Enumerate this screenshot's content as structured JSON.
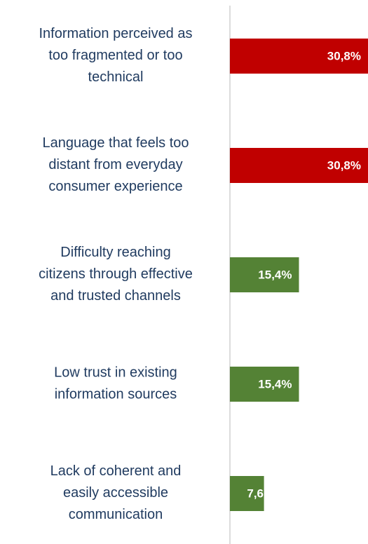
{
  "chart_data": {
    "type": "bar",
    "orientation": "horizontal",
    "categories": [
      [
        "Information perceived as",
        "too fragmented or too",
        "technical"
      ],
      [
        "Language that feels too",
        "distant from everyday",
        "consumer experience"
      ],
      [
        "Difficulty reaching",
        "citizens through effective",
        "and trusted channels"
      ],
      [
        "Low trust in existing",
        "information sources"
      ],
      [
        "Lack of coherent and",
        "easily accessible",
        "communication"
      ]
    ],
    "values": [
      30.8,
      30.8,
      15.4,
      15.4,
      7.6
    ],
    "value_labels": [
      "30,8%",
      "30,8%",
      "15,4%",
      "15,4%",
      "7,6"
    ],
    "colors": [
      "#c00000",
      "#c00000",
      "#548235",
      "#548235",
      "#548235"
    ],
    "xlim": [
      0,
      30.8
    ]
  }
}
